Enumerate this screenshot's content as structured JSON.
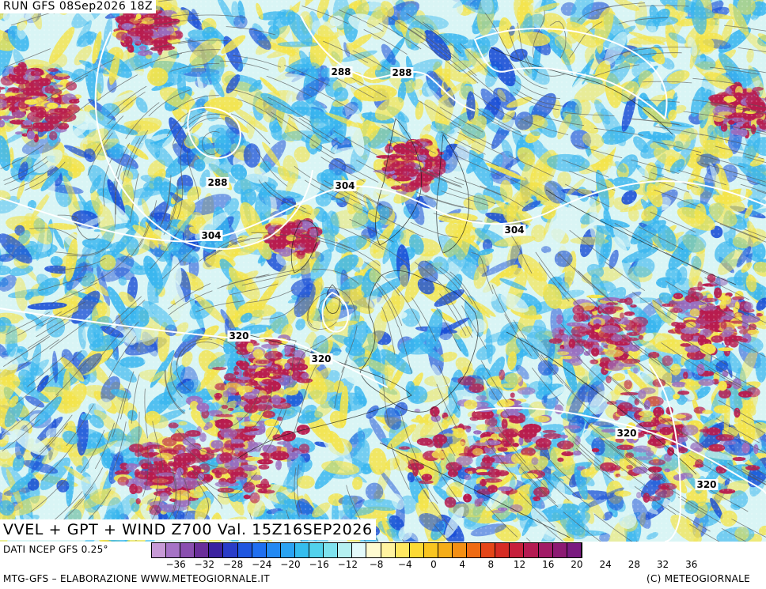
{
  "header": {
    "run_label": "RUN GFS 08Sep2026 18Z",
    "title": "VVEL + GPT + WIND Z700 Val. 15Z16SEP2026"
  },
  "map": {
    "contour_labels": [
      "288",
      "288",
      "288",
      "304",
      "304",
      "304",
      "320",
      "320",
      "320",
      "320"
    ],
    "field_colors": {
      "strong_negative": "#1a4fd6",
      "negative": "#39b6ef",
      "weak": "#d9f5f5",
      "positive": "#f4e44a",
      "strong_positive": "#b81c4e",
      "extreme_positive": "#9a6fbf"
    },
    "contour_color": "#ffffff",
    "streamline_color": "#5a5a5a"
  },
  "footer": {
    "source": "DATI NCEP GFS 0.25°",
    "credit_left": "MTG-GFS – ELABORAZIONE WWW.METEOGIORNALE.IT",
    "credit_right": "(C) METEOGIORNALE",
    "colorbar_colors": [
      "#c79ad6",
      "#a673c6",
      "#8a4fb0",
      "#6a2f9a",
      "#3b22a0",
      "#2a3cc8",
      "#1e56e0",
      "#1f6ff0",
      "#2389f3",
      "#2aa3f2",
      "#35bdee",
      "#52d2ec",
      "#7ee2ee",
      "#b5f0f0",
      "#e3fafa",
      "#fffbd0",
      "#fff3a0",
      "#ffe860",
      "#fcd934",
      "#f9c520",
      "#f6ad18",
      "#f48f14",
      "#ef6b14",
      "#e54618",
      "#d62c24",
      "#c71f3b",
      "#b51a52",
      "#a11a66",
      "#8c1a73",
      "#7a1a80"
    ],
    "colorbar_ticks": [
      "−36",
      "−32",
      "−28",
      "−24",
      "−20",
      "−16",
      "−12",
      "−8",
      "−4",
      "0",
      "4",
      "8",
      "12",
      "16",
      "20",
      "24",
      "28",
      "32",
      "36"
    ]
  }
}
